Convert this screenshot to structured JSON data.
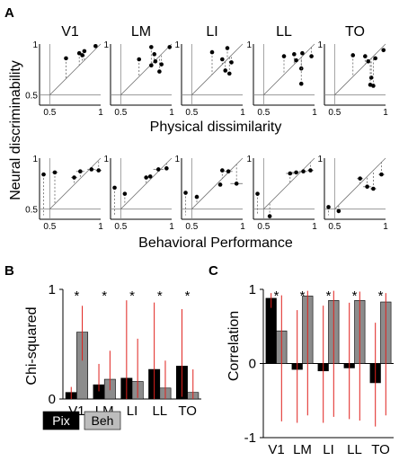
{
  "panel_labels": {
    "a": "A",
    "b": "B",
    "c": "C"
  },
  "chart_data": [
    {
      "panel": "A-top",
      "type": "scatter",
      "ylabel": "Neural discriminability",
      "xlabel": "Physical dissimilarity",
      "xticks": [
        "0.5",
        "1"
      ],
      "yticks": [
        "0.5",
        "1"
      ],
      "xlim": [
        0.4,
        1.0
      ],
      "ylim": [
        0.4,
        1.0
      ],
      "subplots": [
        {
          "title": "V1",
          "points": [
            [
              0.66,
              0.86
            ],
            [
              0.79,
              0.91
            ],
            [
              0.84,
              0.93
            ],
            [
              0.82,
              0.89
            ],
            [
              0.95,
              0.98
            ]
          ]
        },
        {
          "title": "LM",
          "points": [
            [
              0.68,
              0.85
            ],
            [
              0.8,
              0.97
            ],
            [
              0.83,
              0.9
            ],
            [
              0.84,
              0.83
            ],
            [
              0.8,
              0.79
            ],
            [
              0.9,
              0.8
            ],
            [
              0.88,
              0.73
            ],
            [
              0.98,
              0.97
            ]
          ]
        },
        {
          "title": "LI",
          "points": [
            [
              0.7,
              0.92
            ],
            [
              0.8,
              0.85
            ],
            [
              0.85,
              0.96
            ],
            [
              0.83,
              0.74
            ],
            [
              0.87,
              0.71
            ],
            [
              0.89,
              0.82
            ]
          ]
        },
        {
          "title": "LL",
          "points": [
            [
              0.7,
              0.88
            ],
            [
              0.8,
              0.9
            ],
            [
              0.82,
              0.84
            ],
            [
              0.88,
              0.91
            ],
            [
              0.87,
              0.76
            ],
            [
              0.87,
              0.61
            ],
            [
              0.97,
              0.88
            ]
          ]
        },
        {
          "title": "TO",
          "points": [
            [
              0.68,
              0.89
            ],
            [
              0.8,
              0.88
            ],
            [
              0.83,
              0.83
            ],
            [
              0.86,
              0.67
            ],
            [
              0.85,
              0.6
            ],
            [
              0.88,
              0.59
            ],
            [
              0.9,
              0.86
            ],
            [
              0.98,
              0.94
            ]
          ]
        }
      ]
    },
    {
      "panel": "A-bottom",
      "type": "scatter",
      "xlabel": "Behavioral Performance",
      "xticks": [
        "0.5",
        "1"
      ],
      "yticks": [
        "0.5",
        "1"
      ],
      "xlim": [
        0.4,
        1.0
      ],
      "ylim": [
        0.4,
        1.0
      ],
      "subplots": [
        {
          "points": [
            {
              "x": 0.44,
              "y": 0.84,
              "xerr": 0.02
            },
            {
              "x": 0.55,
              "y": 0.86,
              "xerr": 0.03
            },
            {
              "x": 0.74,
              "y": 0.81,
              "xerr": 0.03
            },
            {
              "x": 0.8,
              "y": 0.87,
              "xerr": 0.04
            },
            {
              "x": 0.91,
              "y": 0.89,
              "xerr": 0.04
            },
            {
              "x": 0.98,
              "y": 0.88,
              "xerr": 0.03
            }
          ]
        },
        {
          "points": [
            {
              "x": 0.44,
              "y": 0.71,
              "xerr": 0.01
            },
            {
              "x": 0.54,
              "y": 0.65,
              "xerr": 0.01
            },
            {
              "x": 0.75,
              "y": 0.81,
              "xerr": 0.02
            },
            {
              "x": 0.79,
              "y": 0.82,
              "xerr": 0.02
            },
            {
              "x": 0.87,
              "y": 0.89,
              "xerr": 0.05
            },
            {
              "x": 0.95,
              "y": 0.9,
              "xerr": 0.02
            }
          ]
        },
        {
          "points": [
            {
              "x": 0.44,
              "y": 0.66,
              "xerr": 0.01
            },
            {
              "x": 0.55,
              "y": 0.62,
              "xerr": 0.01
            },
            {
              "x": 0.78,
              "y": 0.74,
              "xerr": 0.02
            },
            {
              "x": 0.8,
              "y": 0.88,
              "xerr": 0.02
            },
            {
              "x": 0.86,
              "y": 0.87,
              "xerr": 0.04
            },
            {
              "x": 0.94,
              "y": 0.75,
              "xerr": 0.06
            }
          ]
        },
        {
          "points": [
            {
              "x": 0.44,
              "y": 0.65,
              "xerr": 0.01
            },
            {
              "x": 0.56,
              "y": 0.43,
              "xerr": 0.01
            },
            {
              "x": 0.76,
              "y": 0.85,
              "xerr": 0.04
            },
            {
              "x": 0.82,
              "y": 0.86,
              "xerr": 0.04
            },
            {
              "x": 0.89,
              "y": 0.87,
              "xerr": 0.04
            },
            {
              "x": 0.96,
              "y": 0.88,
              "xerr": 0.03
            }
          ]
        },
        {
          "points": [
            {
              "x": 0.44,
              "y": 0.52,
              "xerr": 0.01
            },
            {
              "x": 0.54,
              "y": 0.48,
              "xerr": 0.01
            },
            {
              "x": 0.75,
              "y": 0.8,
              "xerr": 0.03
            },
            {
              "x": 0.82,
              "y": 0.72,
              "xerr": 0.04
            },
            {
              "x": 0.88,
              "y": 0.7,
              "xerr": 0.03
            },
            {
              "x": 0.96,
              "y": 0.84,
              "xerr": 0.03
            }
          ]
        }
      ]
    },
    {
      "panel": "B",
      "type": "bar",
      "ylabel": "Chi-squared",
      "categories": [
        "V1",
        "LM",
        "LI",
        "LL",
        "TO"
      ],
      "ylim": [
        0,
        1
      ],
      "yticks": [
        "0",
        "1"
      ],
      "significance": [
        "*",
        "*",
        "*",
        "*",
        "*"
      ],
      "series": [
        {
          "name": "Pix",
          "color": "#000000",
          "values": [
            0.06,
            0.13,
            0.19,
            0.27,
            0.3
          ],
          "err": [
            [
              0.0,
              0.11
            ],
            [
              0.07,
              0.32
            ],
            [
              0.0,
              0.9
            ],
            [
              0.0,
              0.88
            ],
            [
              0.02,
              0.82
            ]
          ]
        },
        {
          "name": "Beh",
          "color": "#8c8c8c",
          "values": [
            0.61,
            0.18,
            0.16,
            0.1,
            0.06
          ],
          "err": [
            [
              0.35,
              0.85
            ],
            [
              0.08,
              0.44
            ],
            [
              0.01,
              0.55
            ],
            [
              0.0,
              0.35
            ],
            [
              0.0,
              0.27
            ]
          ]
        }
      ],
      "legend": [
        "Pix",
        "Beh"
      ]
    },
    {
      "panel": "C",
      "type": "bar",
      "ylabel": "Correlation",
      "categories": [
        "V1",
        "LM",
        "LI",
        "LL",
        "TO"
      ],
      "ylim": [
        -1,
        1
      ],
      "yticks": [
        "1",
        "0",
        "-1"
      ],
      "significance": [
        "*",
        "*",
        "*",
        "*",
        "*"
      ],
      "series": [
        {
          "name": "Pix",
          "color": "#000000",
          "values": [
            0.88,
            -0.08,
            -0.1,
            -0.06,
            -0.26
          ],
          "err": [
            [
              0.75,
              0.95
            ],
            [
              -0.8,
              0.72
            ],
            [
              -0.8,
              0.78
            ],
            [
              -0.75,
              0.82
            ],
            [
              -0.85,
              0.55
            ]
          ]
        },
        {
          "name": "Beh",
          "color": "#8c8c8c",
          "values": [
            0.44,
            0.91,
            0.85,
            0.85,
            0.83
          ],
          "err": [
            [
              -0.78,
              0.92
            ],
            [
              -0.7,
              0.98
            ],
            [
              -0.72,
              0.98
            ],
            [
              -0.77,
              0.97
            ],
            [
              -0.7,
              0.95
            ]
          ]
        }
      ]
    }
  ]
}
